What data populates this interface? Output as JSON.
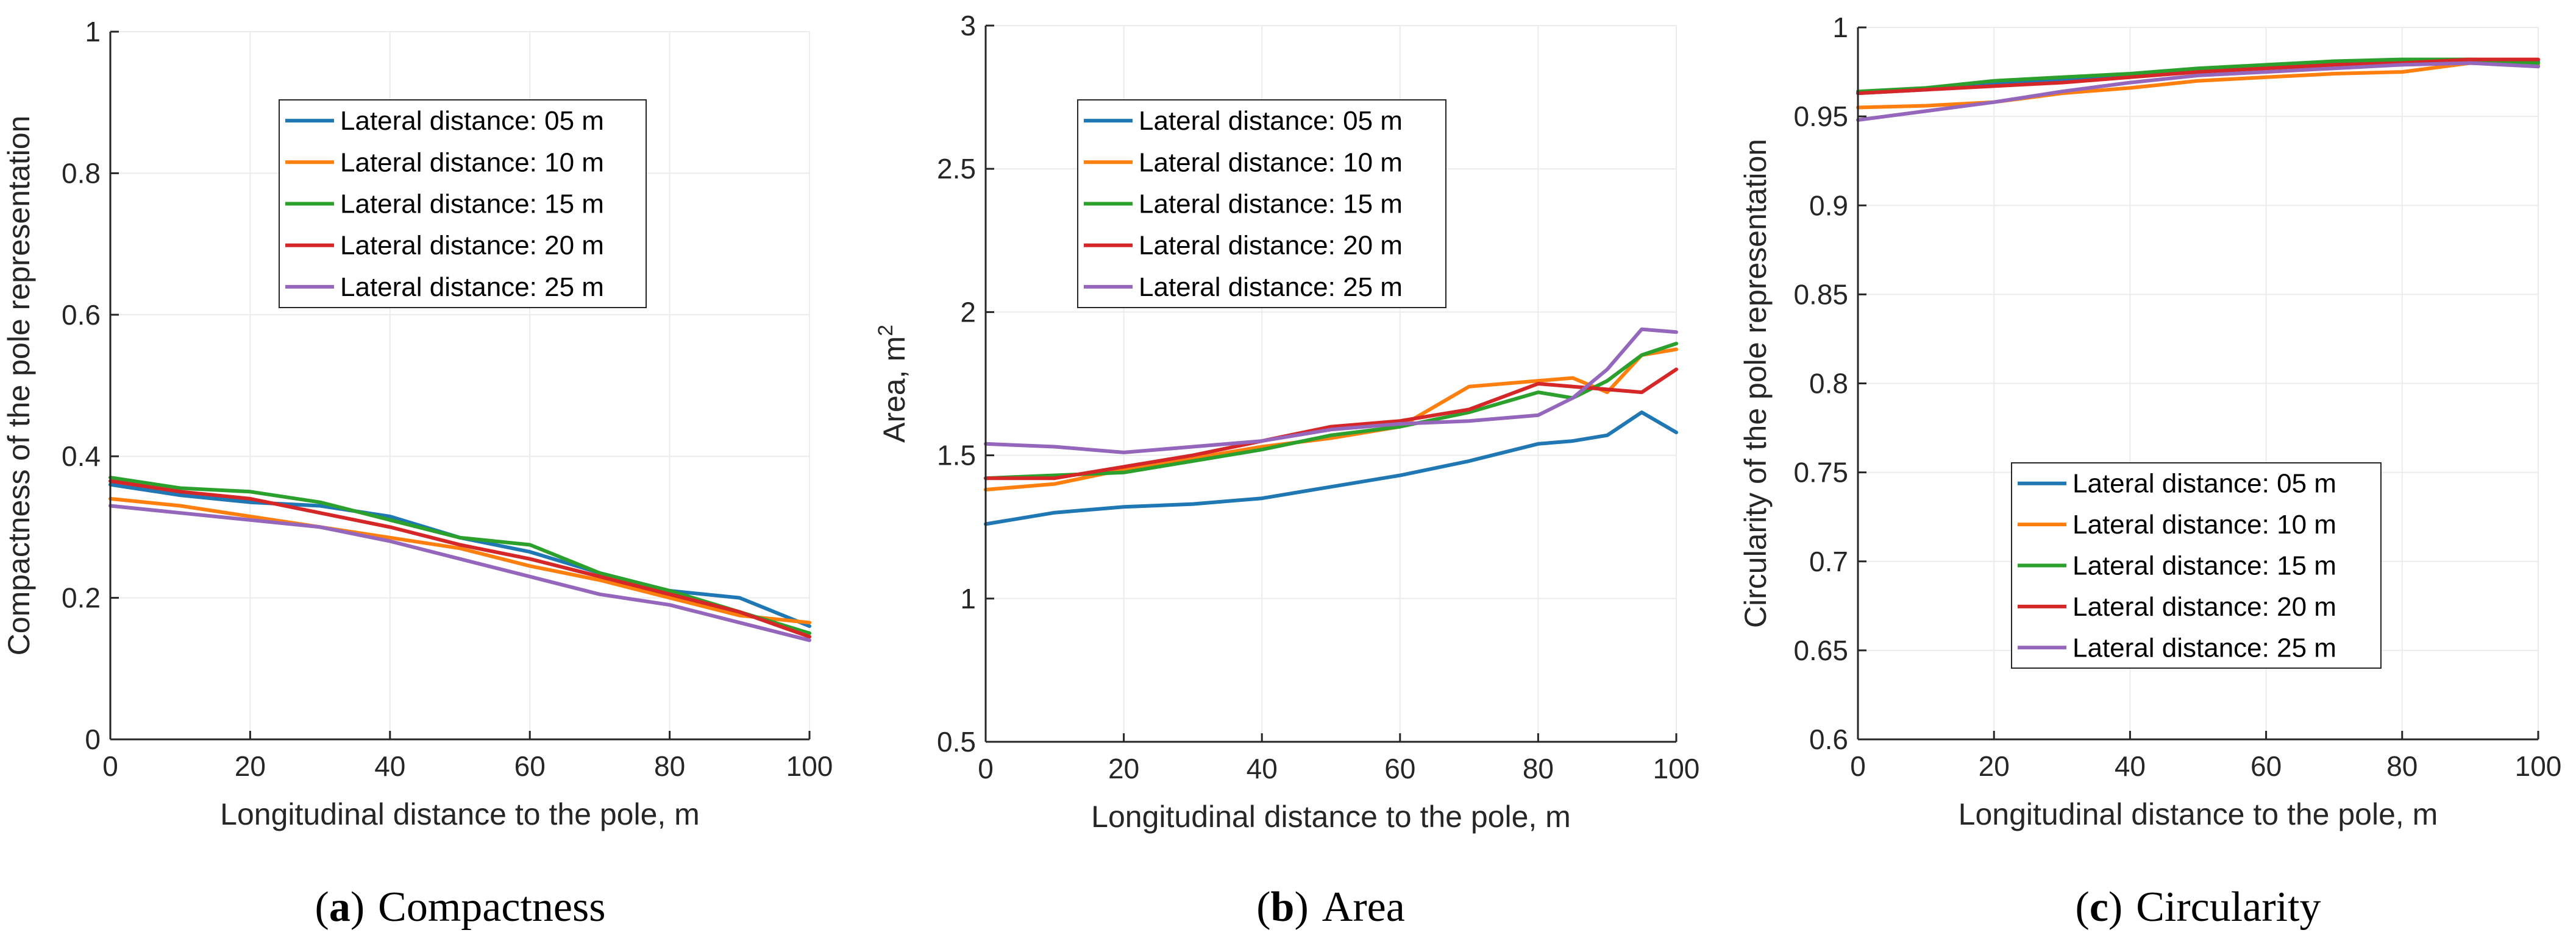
{
  "chart_data": [
    {
      "type": "line",
      "caption_letter": "a",
      "caption_text": "Compactness",
      "xlabel": "Longitudinal distance to the pole, m",
      "ylabel": "Compactness of the pole representation",
      "xlim": [
        0,
        100
      ],
      "ylim": [
        0,
        1
      ],
      "xticks": [
        0,
        20,
        40,
        60,
        80,
        100
      ],
      "yticks": [
        0,
        0.2,
        0.4,
        0.6,
        0.8,
        1
      ],
      "ytick_labels": [
        "0",
        "0.2",
        "0.4",
        "0.6",
        "0.8",
        "1"
      ],
      "grid": true,
      "legend_position": "upper-center",
      "x": [
        0,
        10,
        20,
        30,
        40,
        50,
        60,
        70,
        80,
        90,
        100
      ],
      "series": [
        {
          "name": "Lateral distance: 05 m",
          "values": [
            0.36,
            0.345,
            0.335,
            0.33,
            0.315,
            0.285,
            0.265,
            0.235,
            0.21,
            0.2,
            0.16
          ]
        },
        {
          "name": "Lateral distance: 10 m",
          "values": [
            0.34,
            0.33,
            0.315,
            0.3,
            0.285,
            0.27,
            0.245,
            0.225,
            0.2,
            0.175,
            0.165
          ]
        },
        {
          "name": "Lateral distance: 15 m",
          "values": [
            0.37,
            0.355,
            0.35,
            0.335,
            0.31,
            0.285,
            0.275,
            0.235,
            0.21,
            0.18,
            0.15
          ]
        },
        {
          "name": "Lateral distance: 20 m",
          "values": [
            0.365,
            0.35,
            0.34,
            0.32,
            0.3,
            0.275,
            0.255,
            0.23,
            0.205,
            0.18,
            0.145
          ]
        },
        {
          "name": "Lateral distance: 25 m",
          "values": [
            0.33,
            0.32,
            0.31,
            0.3,
            0.28,
            0.255,
            0.23,
            0.205,
            0.19,
            0.165,
            0.14
          ]
        }
      ]
    },
    {
      "type": "line",
      "caption_letter": "b",
      "caption_text": "Area",
      "xlabel": "Longitudinal distance to the pole, m",
      "ylabel": "Area, m",
      "ylabel_sup": "2",
      "xlim": [
        0,
        100
      ],
      "ylim": [
        0.5,
        3
      ],
      "xticks": [
        0,
        20,
        40,
        60,
        80,
        100
      ],
      "yticks": [
        0.5,
        1,
        1.5,
        2,
        2.5,
        3
      ],
      "ytick_labels": [
        "0.5",
        "1",
        "1.5",
        "2",
        "2.5",
        "3"
      ],
      "grid": true,
      "legend_position": "top-left",
      "x": [
        0,
        10,
        20,
        30,
        40,
        50,
        60,
        70,
        80,
        85,
        90,
        95,
        100
      ],
      "series": [
        {
          "name": "Lateral distance: 05 m",
          "values": [
            1.26,
            1.3,
            1.32,
            1.33,
            1.35,
            1.39,
            1.43,
            1.48,
            1.54,
            1.55,
            1.57,
            1.65,
            1.58
          ]
        },
        {
          "name": "Lateral distance: 10 m",
          "values": [
            1.38,
            1.4,
            1.45,
            1.49,
            1.53,
            1.56,
            1.6,
            1.74,
            1.76,
            1.77,
            1.72,
            1.85,
            1.87
          ]
        },
        {
          "name": "Lateral distance: 15 m",
          "values": [
            1.42,
            1.43,
            1.44,
            1.48,
            1.52,
            1.57,
            1.6,
            1.65,
            1.72,
            1.7,
            1.76,
            1.85,
            1.89
          ]
        },
        {
          "name": "Lateral distance: 20 m",
          "values": [
            1.42,
            1.42,
            1.46,
            1.5,
            1.55,
            1.6,
            1.62,
            1.66,
            1.75,
            1.74,
            1.73,
            1.72,
            1.8
          ]
        },
        {
          "name": "Lateral distance: 25 m",
          "values": [
            1.54,
            1.53,
            1.51,
            1.53,
            1.55,
            1.59,
            1.61,
            1.62,
            1.64,
            1.7,
            1.8,
            1.94,
            1.93
          ]
        }
      ]
    },
    {
      "type": "line",
      "caption_letter": "c",
      "caption_text": "Circularity",
      "xlabel": "Longitudinal distance to the pole, m",
      "ylabel": "Circularity of the pole representation",
      "xlim": [
        0,
        100
      ],
      "ylim": [
        0.6,
        1
      ],
      "xticks": [
        0,
        20,
        40,
        60,
        80,
        100
      ],
      "yticks": [
        0.6,
        0.65,
        0.7,
        0.75,
        0.8,
        0.85,
        0.9,
        0.95,
        1
      ],
      "ytick_labels": [
        "0.6",
        "0.65",
        "0.7",
        "0.75",
        "0.8",
        "0.85",
        "0.9",
        "0.95",
        "1"
      ],
      "grid": true,
      "legend_position": "lower-center",
      "x": [
        0,
        10,
        20,
        30,
        40,
        50,
        60,
        70,
        80,
        90,
        100
      ],
      "series": [
        {
          "name": "Lateral distance: 05 m",
          "values": [
            0.963,
            0.965,
            0.968,
            0.971,
            0.973,
            0.976,
            0.978,
            0.98,
            0.981,
            0.982,
            0.981
          ]
        },
        {
          "name": "Lateral distance: 10 m",
          "values": [
            0.955,
            0.956,
            0.958,
            0.963,
            0.966,
            0.97,
            0.972,
            0.974,
            0.975,
            0.98,
            0.979
          ]
        },
        {
          "name": "Lateral distance: 15 m",
          "values": [
            0.964,
            0.966,
            0.97,
            0.972,
            0.974,
            0.977,
            0.979,
            0.981,
            0.982,
            0.982,
            0.98
          ]
        },
        {
          "name": "Lateral distance: 20 m",
          "values": [
            0.963,
            0.965,
            0.967,
            0.969,
            0.972,
            0.975,
            0.977,
            0.979,
            0.98,
            0.982,
            0.982
          ]
        },
        {
          "name": "Lateral distance: 25 m",
          "values": [
            0.948,
            0.953,
            0.958,
            0.964,
            0.969,
            0.973,
            0.975,
            0.977,
            0.979,
            0.98,
            0.978
          ]
        }
      ]
    }
  ],
  "colors": {
    "series": [
      "#0072BD",
      "#EDB120",
      "#77AC30",
      "#D95319",
      "#7E2F8E"
    ],
    "series_actual": [
      "#1f77b4",
      "#ff7f0e",
      "#2ca02c",
      "#d62728",
      "#9467bd"
    ],
    "axis": "#262626",
    "grid": "#ebebeb"
  }
}
